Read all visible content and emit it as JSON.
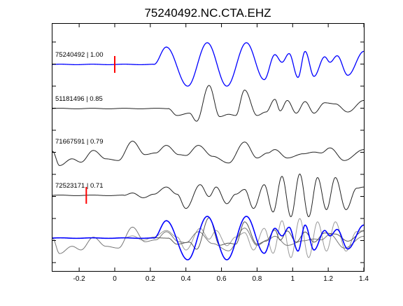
{
  "chart_data": {
    "type": "line",
    "title": "75240492.NC.CTA.EHZ",
    "xlabel": "",
    "ylabel": "",
    "xlim": [
      -0.35,
      1.4
    ],
    "x_ticks": [
      -0.2,
      0,
      0.2,
      0.4,
      0.6,
      0.8,
      1,
      1.2,
      1.4
    ],
    "x_tick_labels": [
      "-0.2",
      "0",
      "0.2",
      "0.4",
      "0.6",
      "0.8",
      "1",
      "1.2",
      "1.4"
    ],
    "grid": false,
    "traces": [
      {
        "label": "75240492 | 1.00",
        "color": "#0000ff",
        "pick_time": 0.0,
        "onset": 0.22,
        "decay": 0.55,
        "segments": [
          {
            "t": 0.29,
            "a": 0.8
          },
          {
            "t": 0.41,
            "a": -1.0
          },
          {
            "t": 0.52,
            "a": 1.0
          },
          {
            "t": 0.63,
            "a": -1.0
          },
          {
            "t": 0.74,
            "a": 1.0
          },
          {
            "t": 0.84,
            "a": -0.7
          },
          {
            "t": 0.9,
            "a": 0.45
          },
          {
            "t": 0.94,
            "a": 0.1
          },
          {
            "t": 0.98,
            "a": 0.5
          },
          {
            "t": 1.03,
            "a": -0.6
          },
          {
            "t": 1.07,
            "a": 0.6
          },
          {
            "t": 1.12,
            "a": -0.55
          },
          {
            "t": 1.18,
            "a": 0.35
          },
          {
            "t": 1.21,
            "a": 0.1
          },
          {
            "t": 1.25,
            "a": 0.4
          },
          {
            "t": 1.31,
            "a": -0.5
          },
          {
            "t": 1.4,
            "a": 0.6
          }
        ]
      },
      {
        "label": "51181496 | 0.85",
        "color": "#222222",
        "pick_time": null,
        "onset": 0.3,
        "decay": 0.5,
        "segments": [
          {
            "t": 0.35,
            "a": -0.3
          },
          {
            "t": 0.42,
            "a": -0.2
          },
          {
            "t": 0.46,
            "a": -0.55
          },
          {
            "t": 0.53,
            "a": 1.0
          },
          {
            "t": 0.59,
            "a": -0.35
          },
          {
            "t": 0.64,
            "a": -0.25
          },
          {
            "t": 0.68,
            "a": -0.3
          },
          {
            "t": 0.73,
            "a": 0.8
          },
          {
            "t": 0.8,
            "a": -0.3
          },
          {
            "t": 0.85,
            "a": -0.15
          },
          {
            "t": 0.9,
            "a": 0.4
          },
          {
            "t": 0.93,
            "a": -0.1
          },
          {
            "t": 0.97,
            "a": 0.35
          },
          {
            "t": 1.02,
            "a": -0.2
          },
          {
            "t": 1.07,
            "a": 0.3
          },
          {
            "t": 1.12,
            "a": -0.2
          },
          {
            "t": 1.18,
            "a": 0.25
          },
          {
            "t": 1.24,
            "a": 0.2
          },
          {
            "t": 1.31,
            "a": -0.15
          },
          {
            "t": 1.4,
            "a": 0.35
          }
        ]
      },
      {
        "label": "71667591 | 0.79",
        "color": "#222222",
        "pick_time": null,
        "onset": -0.35,
        "decay": 0.6,
        "segments": [
          {
            "t": -0.31,
            "a": -0.85
          },
          {
            "t": -0.24,
            "a": -0.45
          },
          {
            "t": -0.19,
            "a": -0.65
          },
          {
            "t": -0.12,
            "a": 0.05
          },
          {
            "t": -0.05,
            "a": -0.45
          },
          {
            "t": 0.02,
            "a": -0.55
          },
          {
            "t": 0.1,
            "a": 0.6
          },
          {
            "t": 0.17,
            "a": -0.2
          },
          {
            "t": 0.23,
            "a": -0.1
          },
          {
            "t": 0.29,
            "a": 0.35
          },
          {
            "t": 0.36,
            "a": -0.2
          },
          {
            "t": 0.4,
            "a": -0.25
          },
          {
            "t": 0.47,
            "a": 0.35
          },
          {
            "t": 0.55,
            "a": -0.3
          },
          {
            "t": 0.64,
            "a": -0.7
          },
          {
            "t": 0.73,
            "a": 0.55
          },
          {
            "t": 0.8,
            "a": -0.4
          },
          {
            "t": 0.86,
            "a": -0.1
          },
          {
            "t": 0.9,
            "a": 0.1
          },
          {
            "t": 0.97,
            "a": -0.4
          },
          {
            "t": 1.06,
            "a": -0.15
          },
          {
            "t": 1.12,
            "a": -0.05
          },
          {
            "t": 1.16,
            "a": -0.1
          },
          {
            "t": 1.21,
            "a": 0.2
          },
          {
            "t": 1.29,
            "a": -0.55
          },
          {
            "t": 1.4,
            "a": 0.1
          }
        ]
      },
      {
        "label": "72523171 | 0.71",
        "color": "#222222",
        "pick_time": -0.16,
        "onset": 0.05,
        "decay": 0.8,
        "segments": [
          {
            "t": 0.1,
            "a": 0.1
          },
          {
            "t": 0.16,
            "a": -0.1
          },
          {
            "t": 0.22,
            "a": 0.05
          },
          {
            "t": 0.29,
            "a": 0.35
          },
          {
            "t": 0.35,
            "a": 0.05
          },
          {
            "t": 0.4,
            "a": -0.55
          },
          {
            "t": 0.48,
            "a": 0.45
          },
          {
            "t": 0.53,
            "a": -0.05
          },
          {
            "t": 0.57,
            "a": 0.35
          },
          {
            "t": 0.63,
            "a": -0.35
          },
          {
            "t": 0.68,
            "a": 0.05
          },
          {
            "t": 0.73,
            "a": 0.25
          },
          {
            "t": 0.78,
            "a": -0.55
          },
          {
            "t": 0.84,
            "a": 0.45
          },
          {
            "t": 0.89,
            "a": -0.7
          },
          {
            "t": 0.94,
            "a": 0.8
          },
          {
            "t": 0.99,
            "a": -0.9
          },
          {
            "t": 1.04,
            "a": 0.9
          },
          {
            "t": 1.09,
            "a": -0.9
          },
          {
            "t": 1.14,
            "a": 0.75
          },
          {
            "t": 1.19,
            "a": -0.6
          },
          {
            "t": 1.24,
            "a": 0.75
          },
          {
            "t": 1.3,
            "a": -0.6
          },
          {
            "t": 1.36,
            "a": 0.3
          },
          {
            "t": 1.4,
            "a": 0.35
          }
        ]
      }
    ],
    "stack": {
      "colors": [
        "#0000ff",
        "#555555",
        "#777777",
        "#999999"
      ],
      "widths": [
        1.6,
        1,
        1,
        1
      ]
    }
  }
}
